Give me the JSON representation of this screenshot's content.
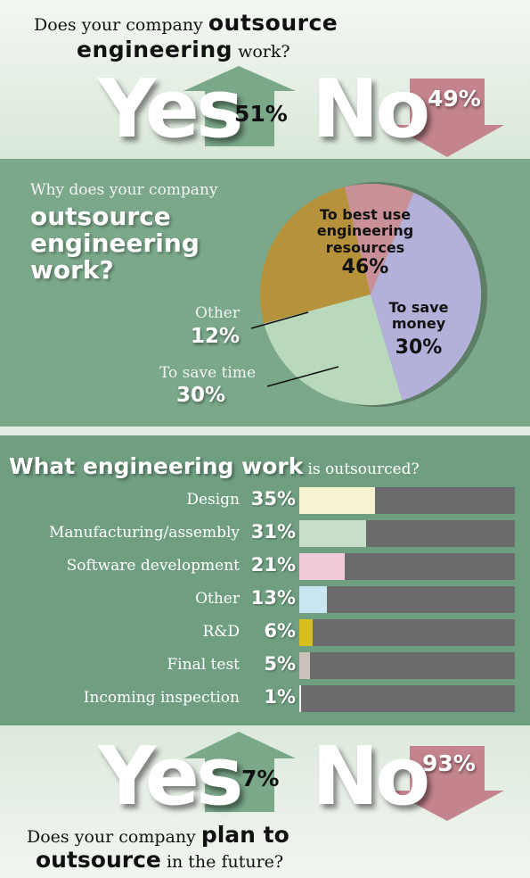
{
  "top": {
    "question_pre": "Does your company",
    "question_bold1": "outsource",
    "question_bold2": "engineering",
    "question_post": "work?",
    "yes_word": "Yes",
    "no_word": "No",
    "yes_pct": "51%",
    "no_pct": "49%"
  },
  "pie": {
    "q_small": "Why does your company",
    "q_big_1": "outsource",
    "q_big_2": "engineering",
    "q_big_3": "work?",
    "slice1_l1": "To best use",
    "slice1_l2": "engineering",
    "slice1_l3": "resources",
    "slice1_pct": "46%",
    "slice2_l1": "To save",
    "slice2_l2": "money",
    "slice2_pct": "30%",
    "other_label": "Other",
    "other_pct": "12%",
    "time_label": "To save time",
    "time_pct": "30%"
  },
  "bars": {
    "title_bold": "What engineering work",
    "title_reg": "is outsourced?",
    "rows": [
      {
        "label": "Design",
        "pct": "35%"
      },
      {
        "label": "Manufacturing/assembly",
        "pct": "31%"
      },
      {
        "label": "Software development",
        "pct": "21%"
      },
      {
        "label": "Other",
        "pct": "13%"
      },
      {
        "label": "R&D",
        "pct": "6%"
      },
      {
        "label": "Final test",
        "pct": "5%"
      },
      {
        "label": "Incoming inspection",
        "pct": "1%"
      }
    ]
  },
  "bottom": {
    "yes_word": "Yes",
    "no_word": "No",
    "yes_pct": "7%",
    "no_pct": "93%",
    "q_pre": "Does your company",
    "q_bold1": "plan to",
    "q_bold2": "outsource",
    "q_post": "in the future?"
  },
  "chart_data": [
    {
      "type": "bar",
      "categories": [
        "Yes",
        "No"
      ],
      "values": [
        51,
        49
      ],
      "title": "Does your company outsource engineering work?"
    },
    {
      "type": "pie",
      "categories": [
        "To best use engineering resources",
        "To save money",
        "To save time",
        "Other"
      ],
      "values": [
        46,
        30,
        30,
        12
      ],
      "title": "Why does your company outsource engineering work?",
      "colors": [
        "#b3b0d9",
        "#b9d9bd",
        "#b6923a",
        "#c99097"
      ]
    },
    {
      "type": "bar",
      "categories": [
        "Design",
        "Manufacturing/assembly",
        "Software development",
        "Other",
        "R&D",
        "Final test",
        "Incoming inspection"
      ],
      "values": [
        35,
        31,
        21,
        13,
        6,
        5,
        1
      ],
      "title": "What engineering work is outsourced?",
      "ylim": [
        0,
        100
      ],
      "colors": [
        "#f6f3d1",
        "#c7dfc9",
        "#f1cbd9",
        "#c8e5f2",
        "#d7bf22",
        "#c9c1ba",
        "#f0f0f0"
      ]
    },
    {
      "type": "bar",
      "categories": [
        "Yes",
        "No"
      ],
      "values": [
        7,
        93
      ],
      "title": "Does your company plan to outsource in the future?"
    }
  ]
}
